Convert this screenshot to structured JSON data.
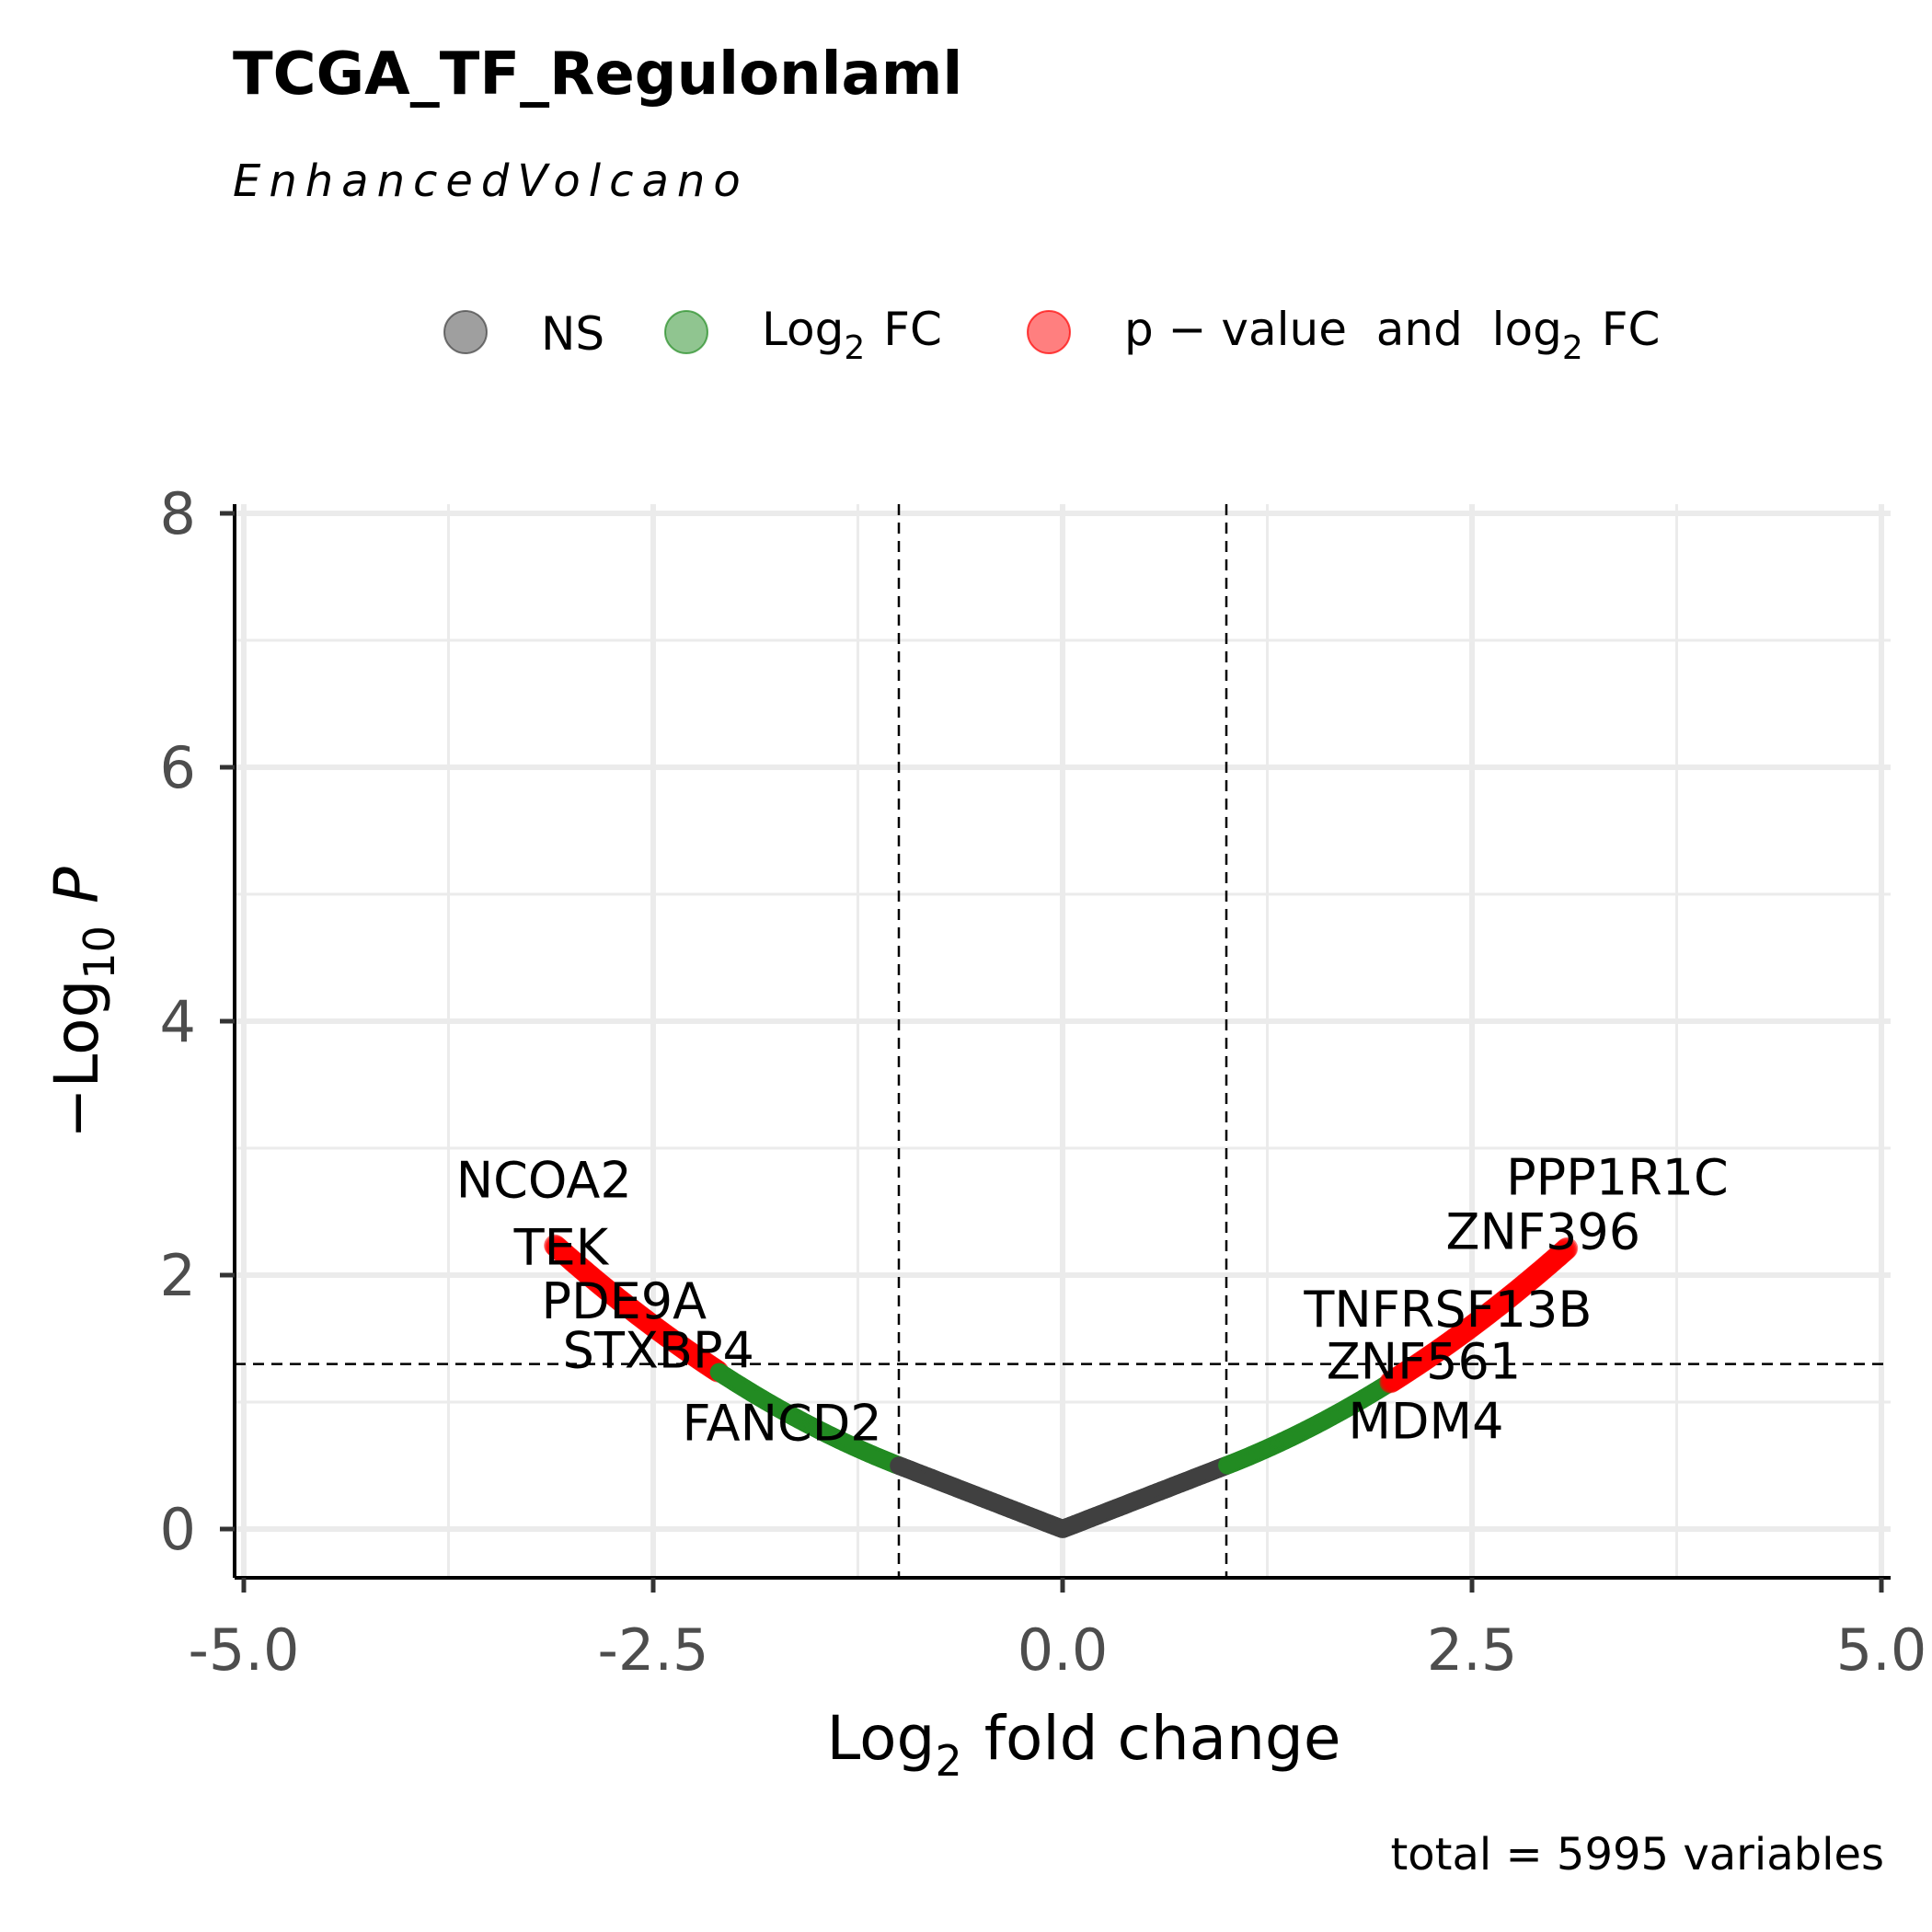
{
  "chart_data": {
    "type": "scatter",
    "title": "TCGA_TF_Regulonlaml",
    "subtitle": "EnhancedVolcano",
    "caption": "total = 5995 variables",
    "xlabel": {
      "main": "Log",
      "sub": "2",
      "rest": "fold change"
    },
    "ylabel": {
      "prefix": "−Log",
      "sub": "10",
      "italic": "P"
    },
    "xlim": [
      -5,
      5
    ],
    "ylim": [
      0,
      8
    ],
    "xticks": [
      -5,
      -2.5,
      0,
      2.5,
      5
    ],
    "xtick_labels": [
      "-5.0",
      "-2.5",
      "0.0",
      "2.5",
      "5.0"
    ],
    "yticks": [
      0,
      2,
      4,
      6,
      8
    ],
    "ytick_labels": [
      "0",
      "2",
      "4",
      "6",
      "8"
    ],
    "grid": true,
    "fc_cutoff": 1,
    "p_cutoff_neglog10": 1.3,
    "legend": {
      "placement": "top",
      "items": [
        {
          "label": "NS",
          "color": "#404040"
        },
        {
          "label": "Log",
          "sub": "2",
          "after": "FC",
          "color": "#228b22"
        },
        {
          "label": "p − value  and  log",
          "sub": "2",
          "after": "FC",
          "color": "#ff0000"
        }
      ]
    },
    "series": [
      {
        "name": "NS",
        "color": "#404040",
        "x_range": [
          -1,
          1
        ],
        "curve": "y = 0.5 * |x|"
      },
      {
        "name": "Log2 FC",
        "color": "#228b22",
        "x_range": [
          -2.03,
          2.03
        ],
        "curve": "y ~ 0.5|x| + 0.15(|x|-1)^2"
      },
      {
        "name": "p-value and log2 FC",
        "color": "#ff0000",
        "x_range": [
          -3.1,
          3.08
        ],
        "curve": "y ~ 0.5|x| + 0.15(|x|-1)^2"
      }
    ],
    "labeled_points": [
      {
        "gene": "NCOA2",
        "x": -3.1,
        "y": 2.7
      },
      {
        "gene": "TEK",
        "x": -2.95,
        "y": 2.33
      },
      {
        "gene": "PDE9A",
        "x": -2.65,
        "y": 2.02
      },
      {
        "gene": "STXBP4",
        "x": -2.4,
        "y": 1.75
      },
      {
        "gene": "FANCD2",
        "x": -2.05,
        "y": 1.35
      },
      {
        "gene": "PPP1R1C",
        "x": 3.05,
        "y": 2.65
      },
      {
        "gene": "ZNF396",
        "x": 2.85,
        "y": 2.35
      },
      {
        "gene": "TNFRSF13B",
        "x": 2.55,
        "y": 2.0
      },
      {
        "gene": "ZNF561",
        "x": 2.25,
        "y": 1.65
      },
      {
        "gene": "MDM4",
        "x": 2.05,
        "y": 1.35
      }
    ]
  }
}
